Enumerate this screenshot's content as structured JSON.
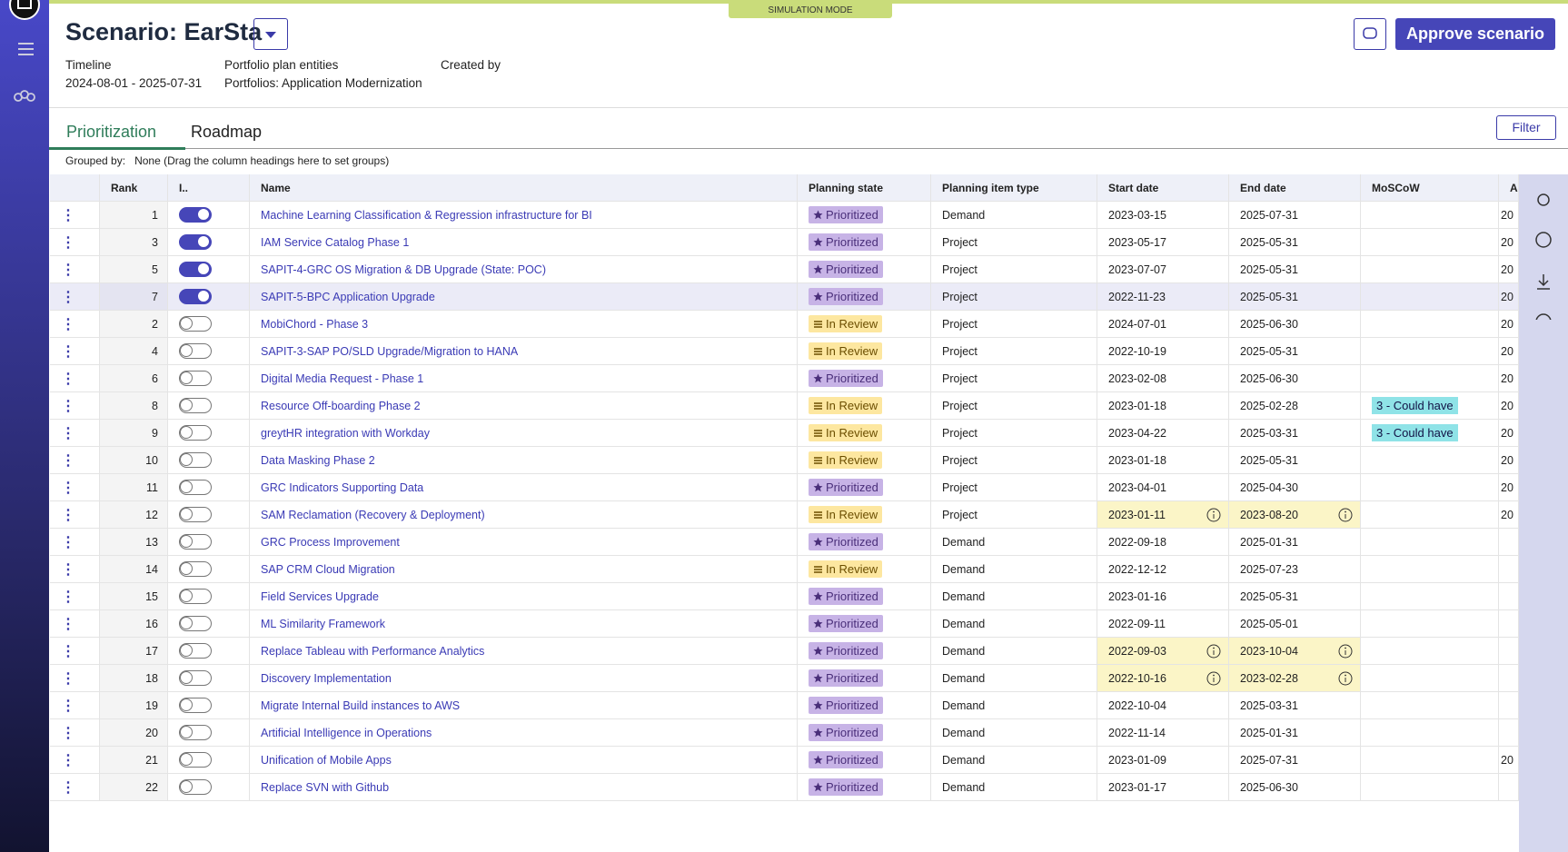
{
  "header": {
    "title": "Scenario: EarSta",
    "mode": "SIMULATION MODE",
    "approve": "Approve scenario",
    "meta": [
      {
        "label": "Timeline",
        "value": "2024-08-01 - 2025-07-31"
      },
      {
        "label": "Portfolio plan entities",
        "value": "Portfolios: Application Modernization"
      },
      {
        "label": "Created by",
        "value": null
      }
    ]
  },
  "tabs": [
    "Prioritization",
    "Roadmap"
  ],
  "filter": "Filter",
  "grouping": {
    "label": "Grouped by:",
    "value": "None (Drag the column headings here to set groups)"
  },
  "table": {
    "columns": [
      "Rank",
      "I..",
      "Name",
      "Planning state",
      "Planning item type",
      "Start date",
      "End date",
      "MoSCoW",
      "Ap"
    ],
    "rows": [
      {
        "rank": 1,
        "included": true,
        "name": "Machine Learning Classification & Regression infrastructure for BI",
        "state": "Prioritized",
        "type": "Demand",
        "start": "2023-03-15",
        "end": "2025-07-31",
        "moscow": null,
        "ap": "20",
        "warn": false
      },
      {
        "rank": 3,
        "included": true,
        "name": "IAM Service Catalog Phase 1",
        "state": "Prioritized",
        "type": "Project",
        "start": "2023-05-17",
        "end": "2025-05-31",
        "moscow": null,
        "ap": "20",
        "warn": false
      },
      {
        "rank": 5,
        "included": true,
        "name": "SAPIT-4-GRC OS Migration & DB Upgrade (State: POC)",
        "state": "Prioritized",
        "type": "Project",
        "start": "2023-07-07",
        "end": "2025-05-31",
        "moscow": null,
        "ap": "20",
        "warn": false
      },
      {
        "rank": 7,
        "included": true,
        "name": "SAPIT-5-BPC Application Upgrade",
        "state": "Prioritized",
        "type": "Project",
        "start": "2022-11-23",
        "end": "2025-05-31",
        "moscow": null,
        "ap": "20",
        "warn": false,
        "selected": true
      },
      {
        "rank": 2,
        "included": false,
        "name": "MobiChord - Phase 3",
        "state": "In Review",
        "type": "Project",
        "start": "2024-07-01",
        "end": "2025-06-30",
        "moscow": null,
        "ap": "20",
        "warn": false
      },
      {
        "rank": 4,
        "included": false,
        "name": "SAPIT-3-SAP PO/SLD Upgrade/Migration to HANA",
        "state": "In Review",
        "type": "Project",
        "start": "2022-10-19",
        "end": "2025-05-31",
        "moscow": null,
        "ap": "20",
        "warn": false
      },
      {
        "rank": 6,
        "included": false,
        "name": "Digital Media Request - Phase 1",
        "state": "Prioritized",
        "type": "Project",
        "start": "2023-02-08",
        "end": "2025-06-30",
        "moscow": null,
        "ap": "20",
        "warn": false
      },
      {
        "rank": 8,
        "included": false,
        "name": "Resource Off-boarding Phase 2",
        "state": "In Review",
        "type": "Project",
        "start": "2023-01-18",
        "end": "2025-02-28",
        "moscow": "3 - Could have",
        "ap": "20",
        "warn": false
      },
      {
        "rank": 9,
        "included": false,
        "name": "greytHR integration with Workday",
        "state": "In Review",
        "type": "Project",
        "start": "2023-04-22",
        "end": "2025-03-31",
        "moscow": "3 - Could have",
        "ap": "20",
        "warn": false
      },
      {
        "rank": 10,
        "included": false,
        "name": "Data Masking Phase 2",
        "state": "In Review",
        "type": "Project",
        "start": "2023-01-18",
        "end": "2025-05-31",
        "moscow": null,
        "ap": "20",
        "warn": false
      },
      {
        "rank": 11,
        "included": false,
        "name": "GRC Indicators Supporting Data",
        "state": "Prioritized",
        "type": "Project",
        "start": "2023-04-01",
        "end": "2025-04-30",
        "moscow": null,
        "ap": "20",
        "warn": false
      },
      {
        "rank": 12,
        "included": false,
        "name": "SAM Reclamation (Recovery & Deployment)",
        "state": "In Review",
        "type": "Project",
        "start": "2023-01-11",
        "end": "2023-08-20",
        "moscow": null,
        "ap": "20",
        "warn": true
      },
      {
        "rank": 13,
        "included": false,
        "name": "GRC Process Improvement",
        "state": "Prioritized",
        "type": "Demand",
        "start": "2022-09-18",
        "end": "2025-01-31",
        "moscow": null,
        "ap": null,
        "warn": false
      },
      {
        "rank": 14,
        "included": false,
        "name": "SAP CRM Cloud Migration",
        "state": "In Review",
        "type": "Demand",
        "start": "2022-12-12",
        "end": "2025-07-23",
        "moscow": null,
        "ap": null,
        "warn": false
      },
      {
        "rank": 15,
        "included": false,
        "name": "Field Services Upgrade",
        "state": "Prioritized",
        "type": "Demand",
        "start": "2023-01-16",
        "end": "2025-05-31",
        "moscow": null,
        "ap": null,
        "warn": false
      },
      {
        "rank": 16,
        "included": false,
        "name": "ML Similarity Framework",
        "state": "Prioritized",
        "type": "Demand",
        "start": "2022-09-11",
        "end": "2025-05-01",
        "moscow": null,
        "ap": null,
        "warn": false
      },
      {
        "rank": 17,
        "included": false,
        "name": "Replace Tableau with Performance Analytics",
        "state": "Prioritized",
        "type": "Demand",
        "start": "2022-09-03",
        "end": "2023-10-04",
        "moscow": null,
        "ap": null,
        "warn": true
      },
      {
        "rank": 18,
        "included": false,
        "name": "Discovery Implementation",
        "state": "Prioritized",
        "type": "Demand",
        "start": "2022-10-16",
        "end": "2023-02-28",
        "moscow": null,
        "ap": null,
        "warn": true
      },
      {
        "rank": 19,
        "included": false,
        "name": "Migrate Internal Build instances to AWS",
        "state": "Prioritized",
        "type": "Demand",
        "start": "2022-10-04",
        "end": "2025-03-31",
        "moscow": null,
        "ap": null,
        "warn": false
      },
      {
        "rank": 20,
        "included": false,
        "name": "Artificial Intelligence in Operations",
        "state": "Prioritized",
        "type": "Demand",
        "start": "2022-11-14",
        "end": "2025-01-31",
        "moscow": null,
        "ap": null,
        "warn": false
      },
      {
        "rank": 21,
        "included": false,
        "name": "Unification of Mobile Apps",
        "state": "Prioritized",
        "type": "Demand",
        "start": "2023-01-09",
        "end": "2025-07-31",
        "moscow": null,
        "ap": "20",
        "warn": false
      },
      {
        "rank": 22,
        "included": false,
        "name": "Replace SVN with Github",
        "state": "Prioritized",
        "type": "Demand",
        "start": "2023-01-17",
        "end": "2025-06-30",
        "moscow": null,
        "ap": null,
        "warn": false
      }
    ]
  }
}
